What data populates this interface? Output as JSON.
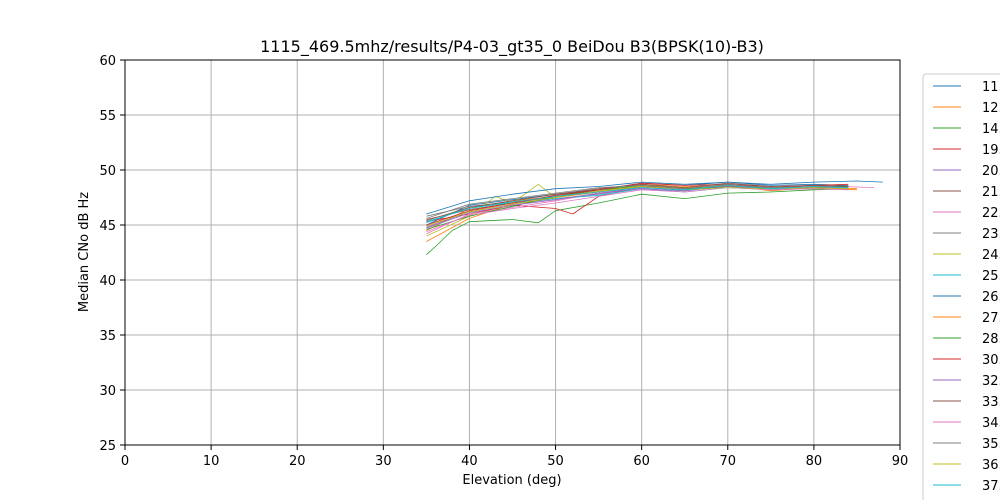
{
  "chart_data": {
    "type": "line",
    "title": "1115_469.5mhz/results/P4-03_gt35_0 BeiDou B3(BPSK(10)-B3)",
    "xlabel": "Elevation (deg)",
    "ylabel": "Median CNo dB Hz",
    "xlim": [
      0,
      90
    ],
    "ylim": [
      25,
      60
    ],
    "xticks": [
      0,
      10,
      20,
      30,
      40,
      50,
      60,
      70,
      80,
      90
    ],
    "yticks": [
      25,
      30,
      35,
      40,
      45,
      50,
      55,
      60
    ],
    "grid": true,
    "legend_placement": "right, outside plot (clipped)",
    "series": [
      {
        "name": "11.0",
        "color": "#1f77b4",
        "x": [
          35,
          40,
          45,
          50,
          55,
          60,
          65,
          70,
          75,
          80,
          85,
          88
        ],
        "y": [
          45.0,
          46.8,
          47.3,
          47.8,
          48.2,
          48.8,
          48.6,
          48.9,
          48.7,
          48.9,
          49.0,
          48.9
        ]
      },
      {
        "name": "12.0",
        "color": "#ff7f0e",
        "x": [
          35,
          40,
          45,
          50,
          55,
          60,
          65,
          70,
          75,
          80,
          85
        ],
        "y": [
          44.5,
          46.5,
          47.2,
          47.6,
          48.0,
          48.5,
          48.4,
          48.6,
          48.3,
          48.5,
          48.3
        ]
      },
      {
        "name": "14.0",
        "color": "#2ca02c",
        "x": [
          35,
          36,
          38,
          40,
          45,
          48,
          50,
          55,
          60,
          65,
          70,
          75,
          80,
          84
        ],
        "y": [
          42.3,
          43.0,
          44.5,
          45.3,
          45.5,
          45.2,
          46.3,
          47.0,
          47.8,
          47.4,
          47.9,
          48.0,
          48.2,
          48.3
        ]
      },
      {
        "name": "19.0",
        "color": "#d62728",
        "x": [
          35,
          40,
          45,
          50,
          52,
          55,
          60,
          65,
          70,
          75,
          80,
          84
        ],
        "y": [
          45.3,
          46.0,
          46.8,
          46.5,
          46.0,
          47.6,
          48.5,
          48.2,
          48.7,
          48.4,
          48.6,
          48.5
        ]
      },
      {
        "name": "20.0",
        "color": "#9467bd",
        "x": [
          35,
          40,
          45,
          50,
          55,
          60,
          65,
          70,
          75,
          80,
          84
        ],
        "y": [
          44.8,
          46.2,
          46.9,
          47.4,
          47.8,
          48.4,
          48.2,
          48.5,
          48.3,
          48.5,
          48.4
        ]
      },
      {
        "name": "21.0",
        "color": "#8c564b",
        "x": [
          35,
          40,
          45,
          50,
          55,
          60,
          65,
          70,
          75,
          80,
          84
        ],
        "y": [
          45.5,
          46.4,
          47.0,
          47.6,
          48.1,
          48.6,
          48.3,
          48.6,
          48.4,
          48.5,
          48.6
        ]
      },
      {
        "name": "22.0",
        "color": "#e377c2",
        "x": [
          35,
          40,
          45,
          50,
          55,
          60,
          65,
          70,
          75,
          80,
          87
        ],
        "y": [
          44.2,
          46.0,
          46.6,
          47.2,
          47.9,
          48.4,
          48.3,
          48.5,
          48.2,
          48.6,
          48.4
        ]
      },
      {
        "name": "23.0",
        "color": "#7f7f7f",
        "x": [
          35,
          40,
          45,
          50,
          55,
          60,
          65,
          70,
          75,
          80,
          84
        ],
        "y": [
          45.8,
          46.7,
          47.1,
          47.5,
          48.0,
          48.5,
          48.1,
          48.6,
          48.3,
          48.4,
          48.5
        ]
      },
      {
        "name": "24.0",
        "color": "#bcbd22",
        "x": [
          35,
          40,
          43,
          45,
          48,
          50,
          55,
          60,
          65,
          70,
          75,
          80,
          84
        ],
        "y": [
          44.0,
          45.8,
          47.6,
          47.0,
          48.7,
          47.5,
          48.0,
          48.6,
          48.4,
          48.5,
          48.2,
          48.3,
          48.4
        ]
      },
      {
        "name": "25.0",
        "color": "#17becf",
        "x": [
          35,
          40,
          45,
          50,
          55,
          60,
          65,
          70,
          75,
          80,
          84
        ],
        "y": [
          45.2,
          46.6,
          47.0,
          47.4,
          47.7,
          48.3,
          48.0,
          48.4,
          48.2,
          48.5,
          48.3
        ]
      },
      {
        "name": "26.0",
        "color": "#1f77b4",
        "x": [
          35,
          40,
          45,
          50,
          55,
          60,
          65,
          70,
          75,
          80,
          84
        ],
        "y": [
          46.0,
          47.2,
          47.8,
          48.3,
          48.5,
          48.9,
          48.7,
          48.9,
          48.6,
          48.7,
          48.6
        ]
      },
      {
        "name": "27.0",
        "color": "#ff7f0e",
        "x": [
          35,
          40,
          45,
          50,
          55,
          60,
          65,
          70,
          75,
          80,
          85
        ],
        "y": [
          43.5,
          45.6,
          46.9,
          47.5,
          48.0,
          48.7,
          48.5,
          48.6,
          48.1,
          48.4,
          48.2
        ]
      },
      {
        "name": "28.0",
        "color": "#2ca02c",
        "x": [
          35,
          40,
          45,
          50,
          55,
          60,
          65,
          70,
          75,
          80,
          84
        ],
        "y": [
          44.6,
          45.8,
          46.7,
          47.6,
          48.2,
          48.6,
          48.3,
          48.5,
          48.4,
          48.4,
          48.5
        ]
      },
      {
        "name": "30.0",
        "color": "#d62728",
        "x": [
          35,
          40,
          45,
          50,
          55,
          60,
          65,
          70,
          75,
          80,
          84
        ],
        "y": [
          45.0,
          46.3,
          47.0,
          47.7,
          48.2,
          48.8,
          48.6,
          48.7,
          48.5,
          48.6,
          48.7
        ]
      },
      {
        "name": "32.0",
        "color": "#9467bd",
        "x": [
          35,
          40,
          45,
          50,
          55,
          60,
          65,
          70,
          75,
          80,
          84
        ],
        "y": [
          44.7,
          46.1,
          46.8,
          47.3,
          47.9,
          48.3,
          48.1,
          48.5,
          48.3,
          48.4,
          48.3
        ]
      },
      {
        "name": "33.0",
        "color": "#8c564b",
        "x": [
          35,
          40,
          45,
          50,
          55,
          60,
          65,
          70,
          75,
          80,
          84
        ],
        "y": [
          45.4,
          46.6,
          47.2,
          47.8,
          48.3,
          48.7,
          48.4,
          48.8,
          48.5,
          48.6,
          48.5
        ]
      },
      {
        "name": "34.0",
        "color": "#e377c2",
        "x": [
          35,
          40,
          45,
          50,
          55,
          60,
          65,
          70,
          75,
          80,
          84
        ],
        "y": [
          44.4,
          45.9,
          46.5,
          47.0,
          47.6,
          48.2,
          48.0,
          48.4,
          48.2,
          48.3,
          48.2
        ]
      },
      {
        "name": "35.0",
        "color": "#7f7f7f",
        "x": [
          35,
          40,
          45,
          50,
          55,
          60,
          65,
          70,
          75,
          80,
          84
        ],
        "y": [
          45.6,
          46.9,
          47.4,
          47.9,
          48.4,
          48.6,
          48.3,
          48.7,
          48.4,
          48.5,
          48.4
        ]
      },
      {
        "name": "36.0",
        "color": "#bcbd22",
        "x": [
          35,
          40,
          45,
          50,
          55,
          60,
          65,
          70,
          75,
          80,
          84
        ],
        "y": [
          44.9,
          46.2,
          46.9,
          47.5,
          48.1,
          48.5,
          48.2,
          48.4,
          48.3,
          48.4,
          48.3
        ]
      },
      {
        "name": "37.0",
        "color": "#17becf",
        "x": [
          35,
          40,
          45,
          50,
          55,
          60,
          65,
          70,
          75,
          80,
          84
        ],
        "y": [
          45.3,
          46.5,
          47.1,
          47.6,
          48.0,
          48.4,
          48.2,
          48.6,
          48.3,
          48.5,
          48.4
        ]
      }
    ]
  }
}
